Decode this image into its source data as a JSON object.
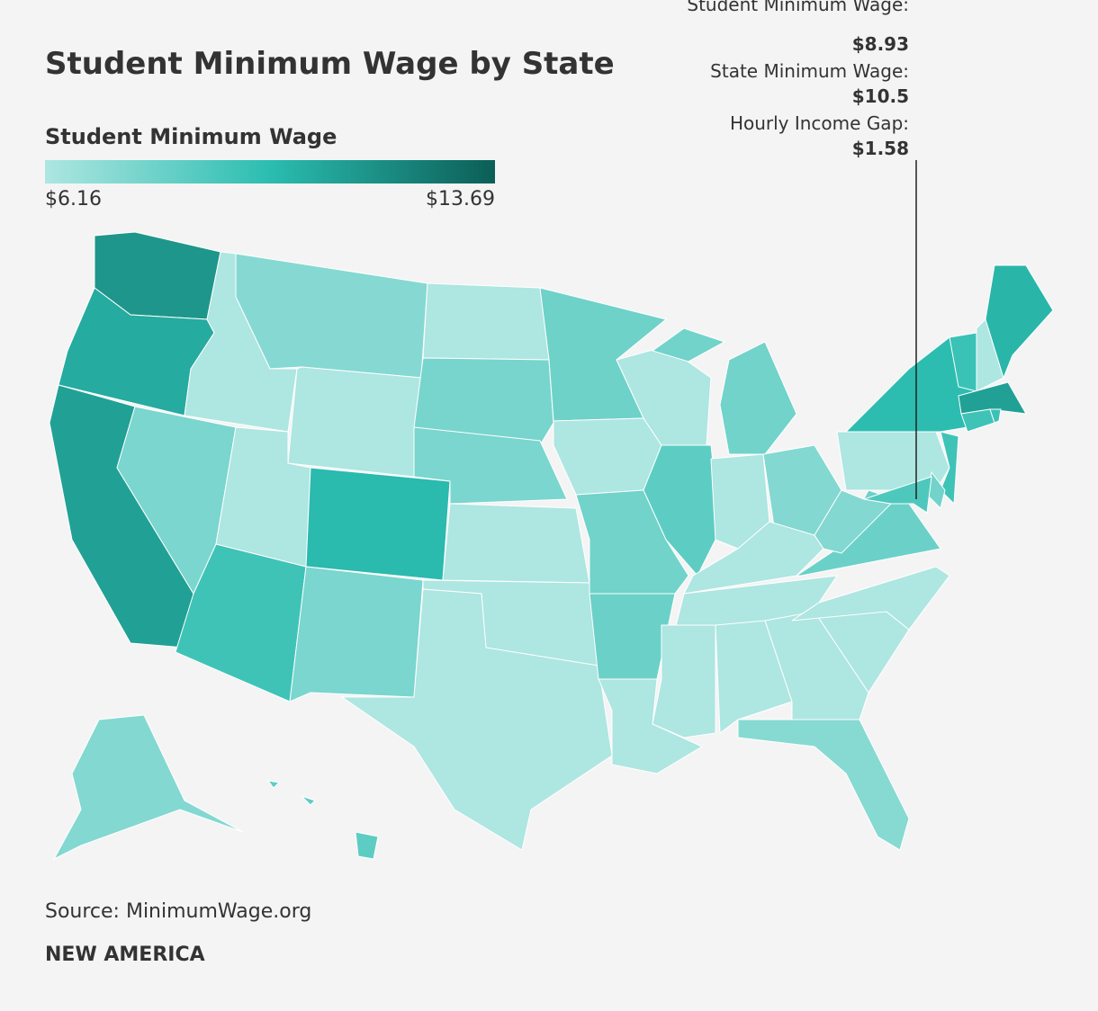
{
  "chart_data": {
    "type": "choropleth",
    "title": "Student Minimum Wage by State",
    "legend_title": "Student Minimum Wage",
    "scale_min": {
      "value": 6.16,
      "label": "$6.16"
    },
    "scale_max": {
      "value": 13.69,
      "label": "$13.69"
    },
    "colors": [
      "#aee6e1",
      "#2bbdb0",
      "#0b5e57"
    ],
    "values": [
      11.48,
      10.63,
      11.05,
      7.65,
      6.16,
      7.35,
      6.16,
      6.16,
      9.35,
      10.03,
      7.65,
      6.16,
      7.7,
      7.65,
      6.16,
      6.16,
      6.16,
      8.0,
      6.16,
      7.9,
      8.08,
      6.16,
      6.16,
      8.5,
      7.9,
      6.16,
      7.4,
      6.16,
      6.16,
      6.16,
      6.16,
      6.16,
      7.3,
      6.16,
      6.16,
      8.08,
      7.4,
      6.16,
      9.9,
      9.5,
      6.16,
      10.2,
      11.05,
      9.35,
      9.5,
      9.35,
      7.9,
      8.93,
      7.4,
      8.5
    ],
    "tooltip": [
      {
        "label": "Student Minimum Wage:",
        "value": "$8.93"
      },
      {
        "label": "State Minimum Wage:",
        "value": "$10.5"
      },
      {
        "label": "Hourly Income Gap:",
        "value": "$1.58"
      }
    ]
  },
  "source": "Source: MinimumWage.org",
  "brand": "NEW AMERICA"
}
